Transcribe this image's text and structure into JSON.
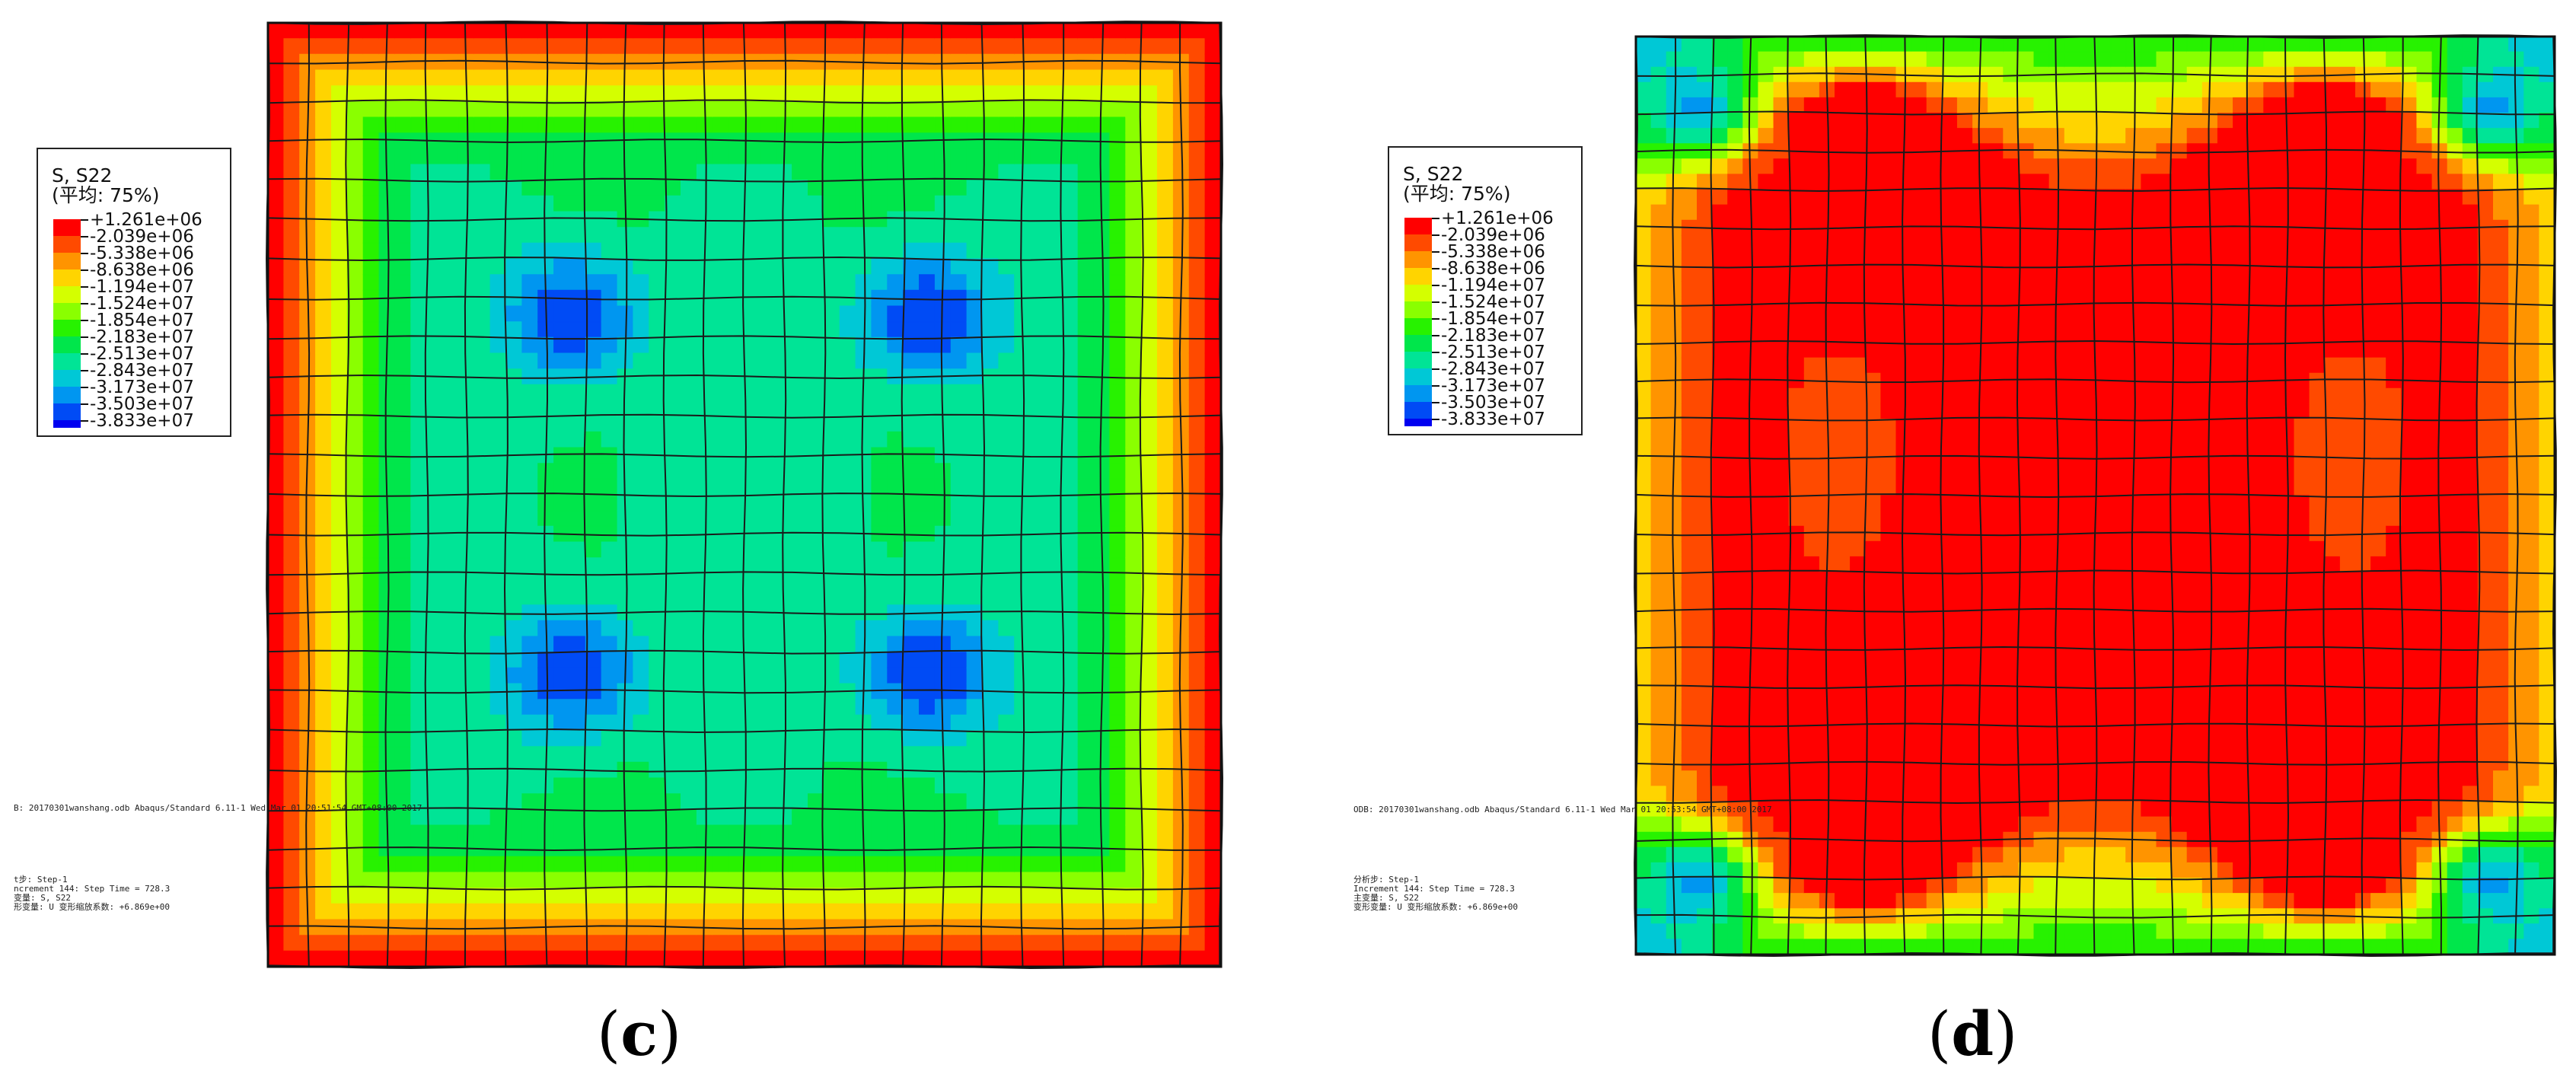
{
  "colors": [
    "#ff0000",
    "#ff4a00",
    "#ff9400",
    "#ffd400",
    "#d4ff00",
    "#8aff00",
    "#27f200",
    "#00e64b",
    "#00e496",
    "#00c8d6",
    "#0096f0",
    "#004bf5",
    "#0000f0"
  ],
  "legend": {
    "variable": "S, S22",
    "average": "(平均: 75%)",
    "ticks": [
      "+1.261e+06",
      "-2.039e+06",
      "-5.338e+06",
      "-8.638e+06",
      "-1.194e+07",
      "-1.524e+07",
      "-1.854e+07",
      "-2.183e+07",
      "-2.513e+07",
      "-2.843e+07",
      "-3.173e+07",
      "-3.503e+07",
      "-3.833e+07"
    ]
  },
  "panels": {
    "c": {
      "label": "c",
      "odb_line": "B: 20170301wanshang.odb    Abaqus/Standard 6.11-1    Wed Mar 01 20:51:54 GMT+08:00 2017",
      "step_line": "t步: Step-1",
      "increment_line": "ncrement    144: Step Time =    728.3",
      "var_line": "变量: S, S22",
      "def_line": "形变量: U   变形缩放系数: +6.869e+00"
    },
    "d": {
      "label": "d",
      "odb_line": "ODB: 20170301wanshang.odb    Abaqus/Standard 6.11-1    Wed Mar 01 20:53:54 GMT+08:00 2017",
      "step_line": "分析步: Step-1",
      "increment_line": "Increment    144: Step Time =    728.3",
      "var_line": "主变量: S, S22",
      "def_line": "变形变量: U   变形缩放系数: +6.869e+00"
    }
  }
}
